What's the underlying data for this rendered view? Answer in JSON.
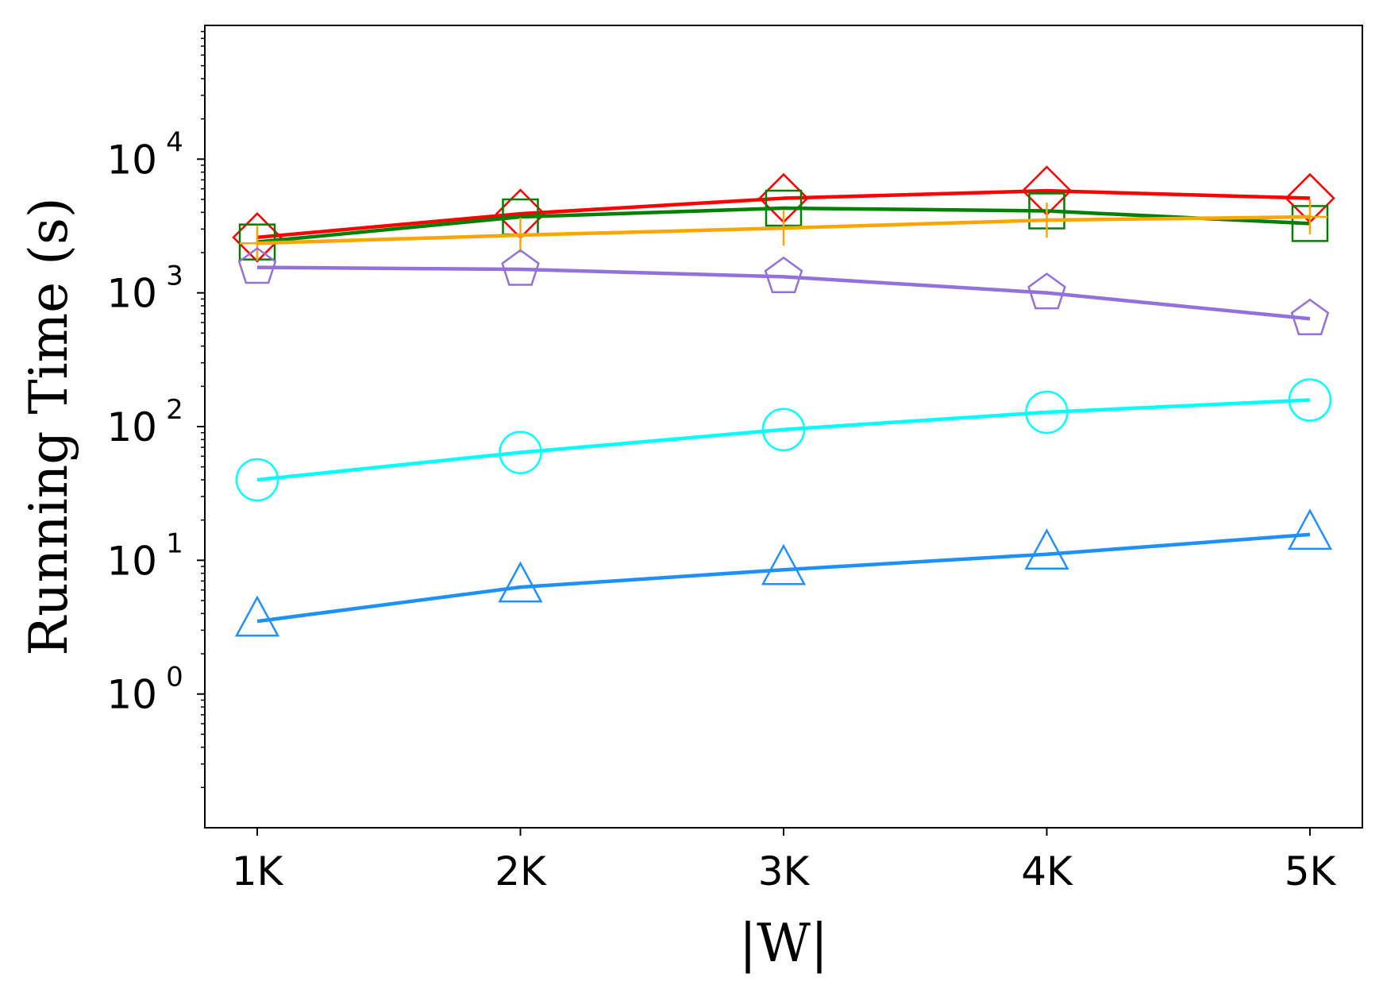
{
  "chart_data": {
    "type": "line",
    "title": "",
    "xlabel": "|W|",
    "ylabel": "Running Time (s)",
    "yscale": "log",
    "ylim": [
      0.1,
      100000
    ],
    "categories": [
      "1K",
      "2K",
      "3K",
      "4K",
      "5K"
    ],
    "y_ticks": [
      {
        "base": "10",
        "exp": "0",
        "value": 1
      },
      {
        "base": "10",
        "exp": "1",
        "value": 10
      },
      {
        "base": "10",
        "exp": "2",
        "value": 100
      },
      {
        "base": "10",
        "exp": "3",
        "value": 1000
      },
      {
        "base": "10",
        "exp": "4",
        "value": 10000
      }
    ],
    "grid": false,
    "legend": "none",
    "series": [
      {
        "marker": "diamond",
        "color": "#ff0000",
        "values": [
          2600,
          3900,
          5100,
          5800,
          5100
        ]
      },
      {
        "marker": "square",
        "color": "#008000",
        "values": [
          2400,
          3700,
          4300,
          4100,
          3300
        ]
      },
      {
        "marker": "plus",
        "color": "#ffa500",
        "values": [
          2350,
          2700,
          3050,
          3500,
          3700
        ]
      },
      {
        "marker": "pentagon",
        "color": "#9370db",
        "values": [
          1550,
          1500,
          1320,
          1000,
          640
        ]
      },
      {
        "marker": "circle",
        "color": "#00ffff",
        "values": [
          40,
          64,
          95,
          128,
          158
        ]
      },
      {
        "marker": "triangle",
        "color": "#1e90ff",
        "values": [
          3.5,
          6.3,
          8.5,
          11.1,
          15.6
        ]
      }
    ]
  }
}
